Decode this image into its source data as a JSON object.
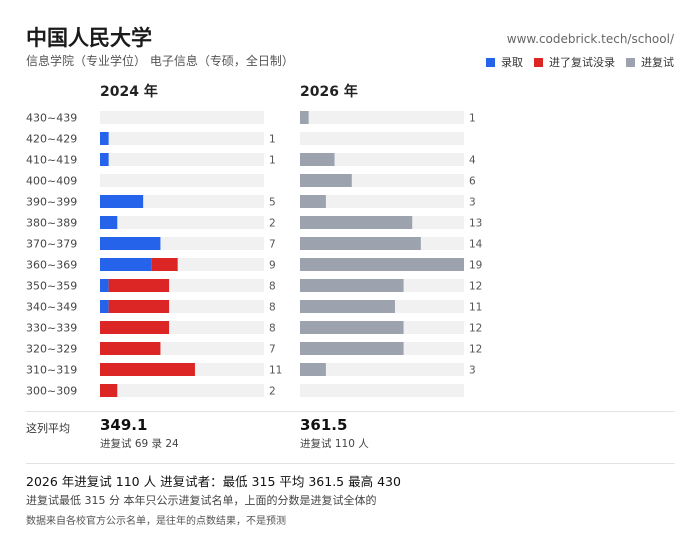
{
  "header": {
    "title": "中国人民大学",
    "subtitle": "信息学院（专业学位） 电子信息（专硕，全日制）",
    "url": "www.codebrick.tech/school/"
  },
  "legend": [
    {
      "label": "录取",
      "color": "#2563eb"
    },
    {
      "label": "进了复试没录",
      "color": "#dc2626"
    },
    {
      "label": "进复试",
      "color": "#9ca3af"
    }
  ],
  "chart_data": {
    "type": "bar",
    "orientation": "horizontal",
    "categories": [
      "430~439",
      "420~429",
      "410~419",
      "400~409",
      "390~399",
      "380~389",
      "370~379",
      "360~369",
      "350~359",
      "340~349",
      "330~339",
      "320~329",
      "310~319",
      "300~309"
    ],
    "panels": [
      {
        "title": "2024 年",
        "stacked": true,
        "series": [
          {
            "name": "录取",
            "color": "#2563eb",
            "values": [
              0,
              1,
              1,
              0,
              5,
              2,
              7,
              6,
              1,
              1,
              0,
              0,
              0,
              0
            ]
          },
          {
            "name": "进了复试没录",
            "color": "#dc2626",
            "values": [
              0,
              0,
              0,
              0,
              0,
              0,
              0,
              3,
              7,
              7,
              8,
              7,
              11,
              2
            ]
          }
        ],
        "totals": [
          0,
          1,
          1,
          0,
          5,
          2,
          7,
          9,
          8,
          8,
          8,
          7,
          11,
          2
        ],
        "xlim": [
          0,
          19
        ]
      },
      {
        "title": "2026 年",
        "stacked": false,
        "series": [
          {
            "name": "进复试",
            "color": "#9ca3af",
            "values": [
              1,
              0,
              4,
              6,
              3,
              13,
              14,
              19,
              12,
              11,
              12,
              12,
              3,
              0
            ]
          }
        ],
        "totals": [
          1,
          0,
          4,
          6,
          3,
          13,
          14,
          19,
          12,
          11,
          12,
          12,
          3,
          0
        ],
        "xlim": [
          0,
          19
        ]
      }
    ],
    "track_color": "#f1f1f1"
  },
  "averages": {
    "label": "这列平均",
    "left": {
      "value": "349.1",
      "sub": "进复试 69 录 24"
    },
    "right": {
      "value": "361.5",
      "sub": "进复试 110 人"
    }
  },
  "summary": {
    "line1": "2026 年进复试 110 人   进复试者：最低 315   平均 361.5   最高 430",
    "line2": "进复试最低 315 分   本年只公示进复试名单，上面的分数是进复试全体的",
    "line3": "数据来自各校官方公示名单，是往年的点数结果，不是预测"
  }
}
